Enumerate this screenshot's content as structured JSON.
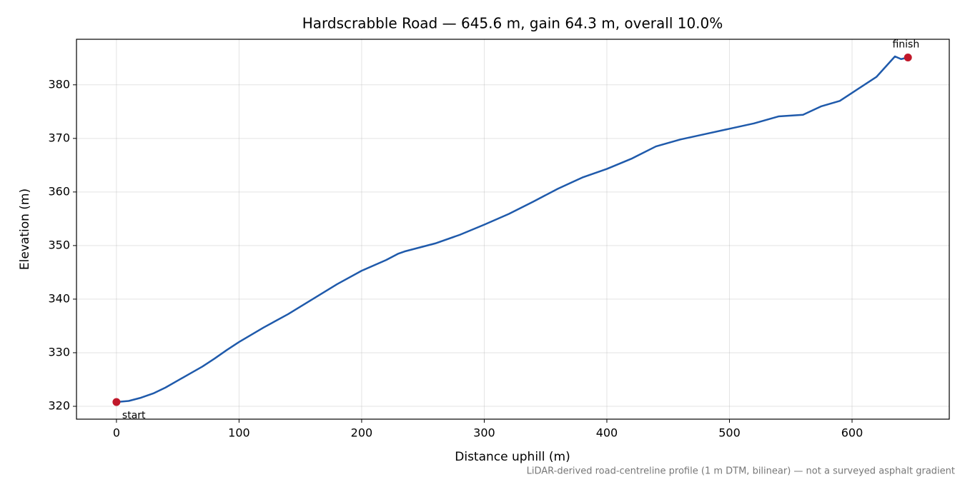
{
  "chart_data": {
    "type": "line",
    "title": "Hardscrabble Road — 645.6 m, gain 64.3 m, overall 10.0%",
    "xlabel": "Distance uphill (m)",
    "ylabel": "Elevation (m)",
    "footnote": "LiDAR-derived road-centreline profile (1 m DTM, bilinear) — not a surveyed asphalt gradient",
    "x": [
      0,
      10,
      20,
      30,
      40,
      50,
      60,
      70,
      80,
      90,
      100,
      120,
      140,
      160,
      180,
      200,
      220,
      230,
      235,
      240,
      260,
      280,
      300,
      320,
      340,
      360,
      380,
      400,
      420,
      440,
      460,
      480,
      500,
      520,
      540,
      560,
      575,
      590,
      600,
      620,
      635,
      640,
      645.6
    ],
    "values": [
      320.8,
      321.0,
      321.6,
      322.4,
      323.5,
      324.8,
      326.1,
      327.4,
      328.9,
      330.5,
      332.0,
      334.7,
      337.2,
      340.0,
      342.8,
      345.3,
      347.3,
      348.5,
      348.9,
      349.2,
      350.4,
      352.0,
      353.9,
      355.9,
      358.2,
      360.6,
      362.7,
      364.3,
      366.2,
      368.5,
      369.8,
      370.8,
      371.8,
      372.8,
      374.1,
      374.4,
      376.0,
      377.0,
      378.5,
      381.5,
      385.3,
      384.8,
      385.1
    ],
    "color": "#1f5aab",
    "markers": {
      "x": [
        0,
        645.6
      ],
      "y": [
        320.8,
        385.1
      ],
      "labels": [
        "start",
        "finish"
      ],
      "color": "#c0182a"
    },
    "xlim": [
      -32.6,
      679.3
    ],
    "ylim": [
      317.6,
      388.5
    ],
    "xticks": [
      0,
      100,
      200,
      300,
      400,
      500,
      600
    ],
    "yticks": [
      320,
      330,
      340,
      350,
      360,
      370,
      380
    ],
    "grid": true
  }
}
